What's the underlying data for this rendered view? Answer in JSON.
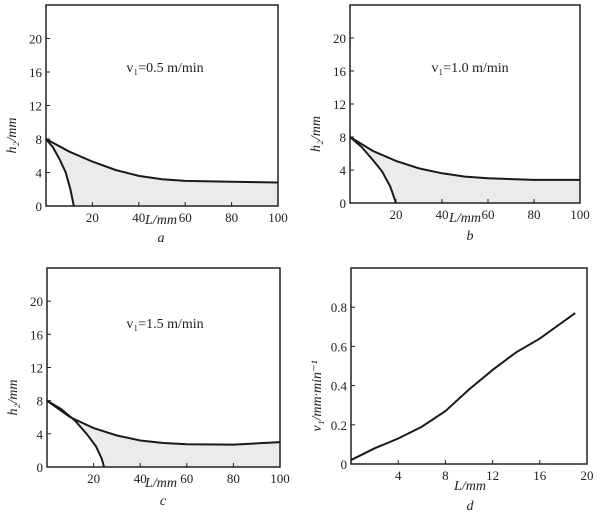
{
  "chart_data": [
    {
      "id": "a",
      "type": "line",
      "panel_label": "a",
      "annotation": "v₁=0.5 m/min",
      "xlabel": "L/mm",
      "ylabel": "h₂/mm",
      "xlim": [
        0,
        100
      ],
      "ylim": [
        0,
        24
      ],
      "xticks": [
        20,
        40,
        60,
        80,
        100
      ],
      "yticks": [
        0,
        4,
        8,
        12,
        16,
        20
      ],
      "series": [
        {
          "name": "upper",
          "x": [
            0,
            10,
            20,
            30,
            40,
            50,
            60,
            80,
            100
          ],
          "y": [
            8,
            6.5,
            5.3,
            4.3,
            3.6,
            3.2,
            3.0,
            2.9,
            2.8
          ]
        },
        {
          "name": "lower",
          "x": [
            0,
            3,
            6,
            8.5,
            10.5,
            12
          ],
          "y": [
            8,
            7,
            5.5,
            4,
            2,
            0
          ]
        }
      ]
    },
    {
      "id": "b",
      "type": "line",
      "panel_label": "b",
      "annotation": "v₁=1.0 m/min",
      "xlabel": "L/mm",
      "ylabel": "h₂/mm",
      "xlim": [
        0,
        100
      ],
      "ylim": [
        0,
        24
      ],
      "xticks": [
        20,
        40,
        60,
        80,
        100
      ],
      "yticks": [
        0,
        4,
        8,
        12,
        16,
        20
      ],
      "series": [
        {
          "name": "upper",
          "x": [
            0,
            10,
            20,
            30,
            40,
            50,
            60,
            80,
            100
          ],
          "y": [
            8,
            6.3,
            5.1,
            4.2,
            3.6,
            3.2,
            3.0,
            2.8,
            2.8
          ]
        },
        {
          "name": "lower",
          "x": [
            0,
            5,
            10,
            14,
            17.5,
            20
          ],
          "y": [
            8,
            6.8,
            5.2,
            3.8,
            2,
            0
          ]
        }
      ]
    },
    {
      "id": "c",
      "type": "line",
      "panel_label": "c",
      "annotation": "v₁=1.5 m/min",
      "xlabel": "L/mm",
      "ylabel": "h₂/mm",
      "xlim": [
        0,
        100
      ],
      "ylim": [
        0,
        24
      ],
      "xticks": [
        20,
        40,
        60,
        80,
        100
      ],
      "yticks": [
        0,
        4,
        8,
        12,
        16,
        20
      ],
      "series": [
        {
          "name": "upper",
          "x": [
            0,
            10,
            20,
            30,
            40,
            50,
            60,
            80,
            100
          ],
          "y": [
            8,
            6.0,
            4.7,
            3.8,
            3.2,
            2.9,
            2.75,
            2.7,
            3.0
          ]
        },
        {
          "name": "lower",
          "x": [
            0,
            6,
            12,
            17,
            21,
            23.5,
            24.5
          ],
          "y": [
            8,
            7,
            5.6,
            4,
            2.5,
            1,
            0
          ]
        }
      ]
    },
    {
      "id": "d",
      "type": "line",
      "panel_label": "d",
      "xlabel": "L/mm",
      "ylabel": "v₁/mm·min⁻¹",
      "xlim": [
        0,
        20
      ],
      "ylim": [
        0,
        1.0
      ],
      "xticks": [
        4,
        8,
        12,
        16,
        20
      ],
      "yticks": [
        0,
        0.2,
        0.4,
        0.6,
        0.8
      ],
      "series": [
        {
          "name": "v1",
          "x": [
            0,
            2,
            4,
            6,
            8,
            10,
            12,
            14,
            16,
            19
          ],
          "y": [
            0.02,
            0.08,
            0.13,
            0.19,
            0.27,
            0.38,
            0.48,
            0.57,
            0.64,
            0.77
          ]
        }
      ]
    }
  ]
}
